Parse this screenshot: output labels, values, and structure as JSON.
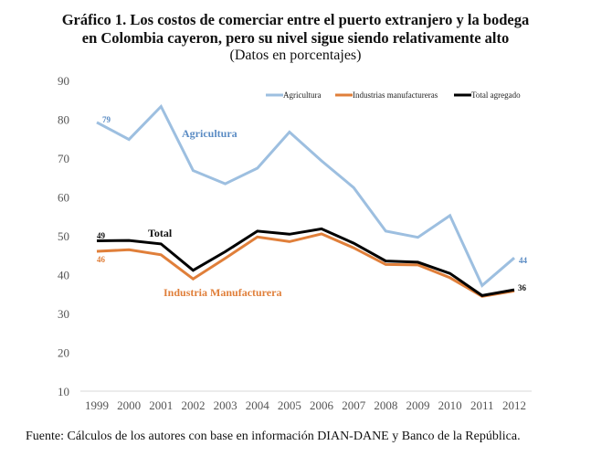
{
  "chart_data": {
    "type": "line",
    "title_line1": "Gráfico 1. Los costos de comerciar entre el puerto extranjero y la bodega",
    "title_line2": "en Colombia cayeron, pero su nivel sigue siendo relativamente alto",
    "subtitle": "(Datos en porcentajes)",
    "source": "Fuente: Cálculos de los autores con base en información DIAN-DANE y Banco de la República.",
    "xlabel": "",
    "ylabel": "",
    "ylim": [
      10,
      90
    ],
    "yticks": [
      10,
      20,
      30,
      40,
      50,
      60,
      70,
      80,
      90
    ],
    "x": [
      "1999",
      "2000",
      "2001",
      "2002",
      "2003",
      "2004",
      "2005",
      "2006",
      "2007",
      "2008",
      "2009",
      "2010",
      "2011",
      "2012"
    ],
    "grid": false,
    "legend_position": "top-right",
    "series": [
      {
        "name": "Agricultura",
        "color": "#9dbfe0",
        "label_color": "#5b8cc4",
        "values": [
          79.2,
          74.8,
          83.3,
          66.8,
          63.4,
          67.4,
          76.7,
          69.3,
          62.4,
          51.2,
          49.6,
          55.2,
          37.2,
          44.3
        ],
        "annotation": "Agricultura",
        "start_label": "79",
        "end_label": "44"
      },
      {
        "name": "Industrias manufactureras",
        "color": "#e07f3a",
        "label_color": "#e07f3a",
        "values": [
          46.0,
          46.4,
          45.1,
          38.9,
          44.2,
          49.7,
          48.5,
          50.5,
          46.9,
          42.6,
          42.5,
          39.2,
          34.4,
          35.8
        ],
        "annotation": "Industria Manufacturera",
        "start_label": "46",
        "end_label": ""
      },
      {
        "name": "Total agregado",
        "color": "#000000",
        "label_color": "#111111",
        "values": [
          48.7,
          48.8,
          47.9,
          41.1,
          45.9,
          51.2,
          50.4,
          51.8,
          48.1,
          43.5,
          43.2,
          40.3,
          34.6,
          36.1
        ],
        "annotation": "Total",
        "start_label": "49",
        "end_label": "36"
      }
    ]
  }
}
